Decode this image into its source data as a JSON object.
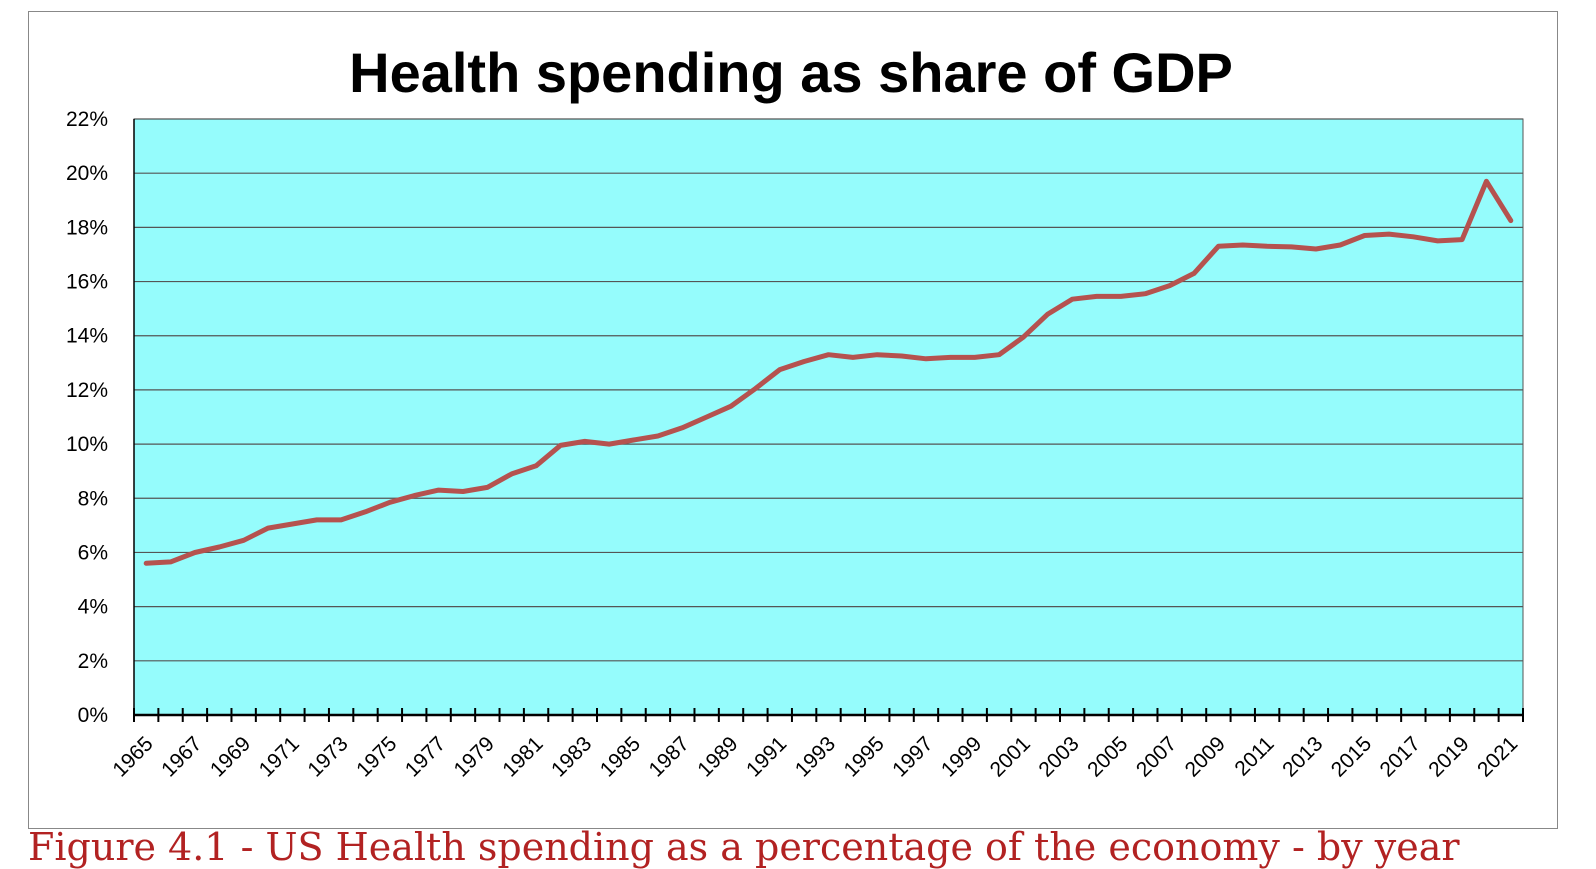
{
  "chart_data": {
    "type": "line",
    "title": "Health spending as share of GDP",
    "xlabel": "",
    "ylabel": "",
    "ylim": [
      0,
      22
    ],
    "ytick_step": 2,
    "ytick_suffix": "%",
    "x": [
      1965,
      1966,
      1967,
      1968,
      1969,
      1970,
      1971,
      1972,
      1973,
      1974,
      1975,
      1976,
      1977,
      1978,
      1979,
      1980,
      1981,
      1982,
      1983,
      1984,
      1985,
      1986,
      1987,
      1988,
      1989,
      1990,
      1991,
      1992,
      1993,
      1994,
      1995,
      1996,
      1997,
      1998,
      1999,
      2000,
      2001,
      2002,
      2003,
      2004,
      2005,
      2006,
      2007,
      2008,
      2009,
      2010,
      2011,
      2012,
      2013,
      2014,
      2015,
      2016,
      2017,
      2018,
      2019,
      2020,
      2021
    ],
    "xtick_labels": [
      "1965",
      "1967",
      "1969",
      "1971",
      "1973",
      "1975",
      "1977",
      "1979",
      "1981",
      "1983",
      "1985",
      "1987",
      "1989",
      "1991",
      "1993",
      "1995",
      "1997",
      "1999",
      "2001",
      "2003",
      "2005",
      "2007",
      "2009",
      "2011",
      "2013",
      "2015",
      "2017",
      "2019",
      "2021"
    ],
    "series": [
      {
        "name": "Health spending as share of GDP",
        "color": "#b5524f",
        "values": [
          5.6,
          5.65,
          6.0,
          6.2,
          6.45,
          6.9,
          7.05,
          7.2,
          7.2,
          7.5,
          7.85,
          8.1,
          8.3,
          8.25,
          8.4,
          8.9,
          9.2,
          9.95,
          10.1,
          10.0,
          10.15,
          10.3,
          10.6,
          11.0,
          11.4,
          12.05,
          12.75,
          13.05,
          13.3,
          13.2,
          13.3,
          13.25,
          13.15,
          13.2,
          13.2,
          13.3,
          13.95,
          14.8,
          15.35,
          15.45,
          15.45,
          15.55,
          15.85,
          16.3,
          17.3,
          17.35,
          17.3,
          17.28,
          17.2,
          17.35,
          17.7,
          17.75,
          17.65,
          17.5,
          17.55,
          19.7,
          18.25
        ]
      }
    ],
    "grid": true,
    "plot_background": "#95fcfc",
    "legend": "none"
  },
  "caption": "Figure 4.1 - US Health spending as a percentage of the economy - by year"
}
